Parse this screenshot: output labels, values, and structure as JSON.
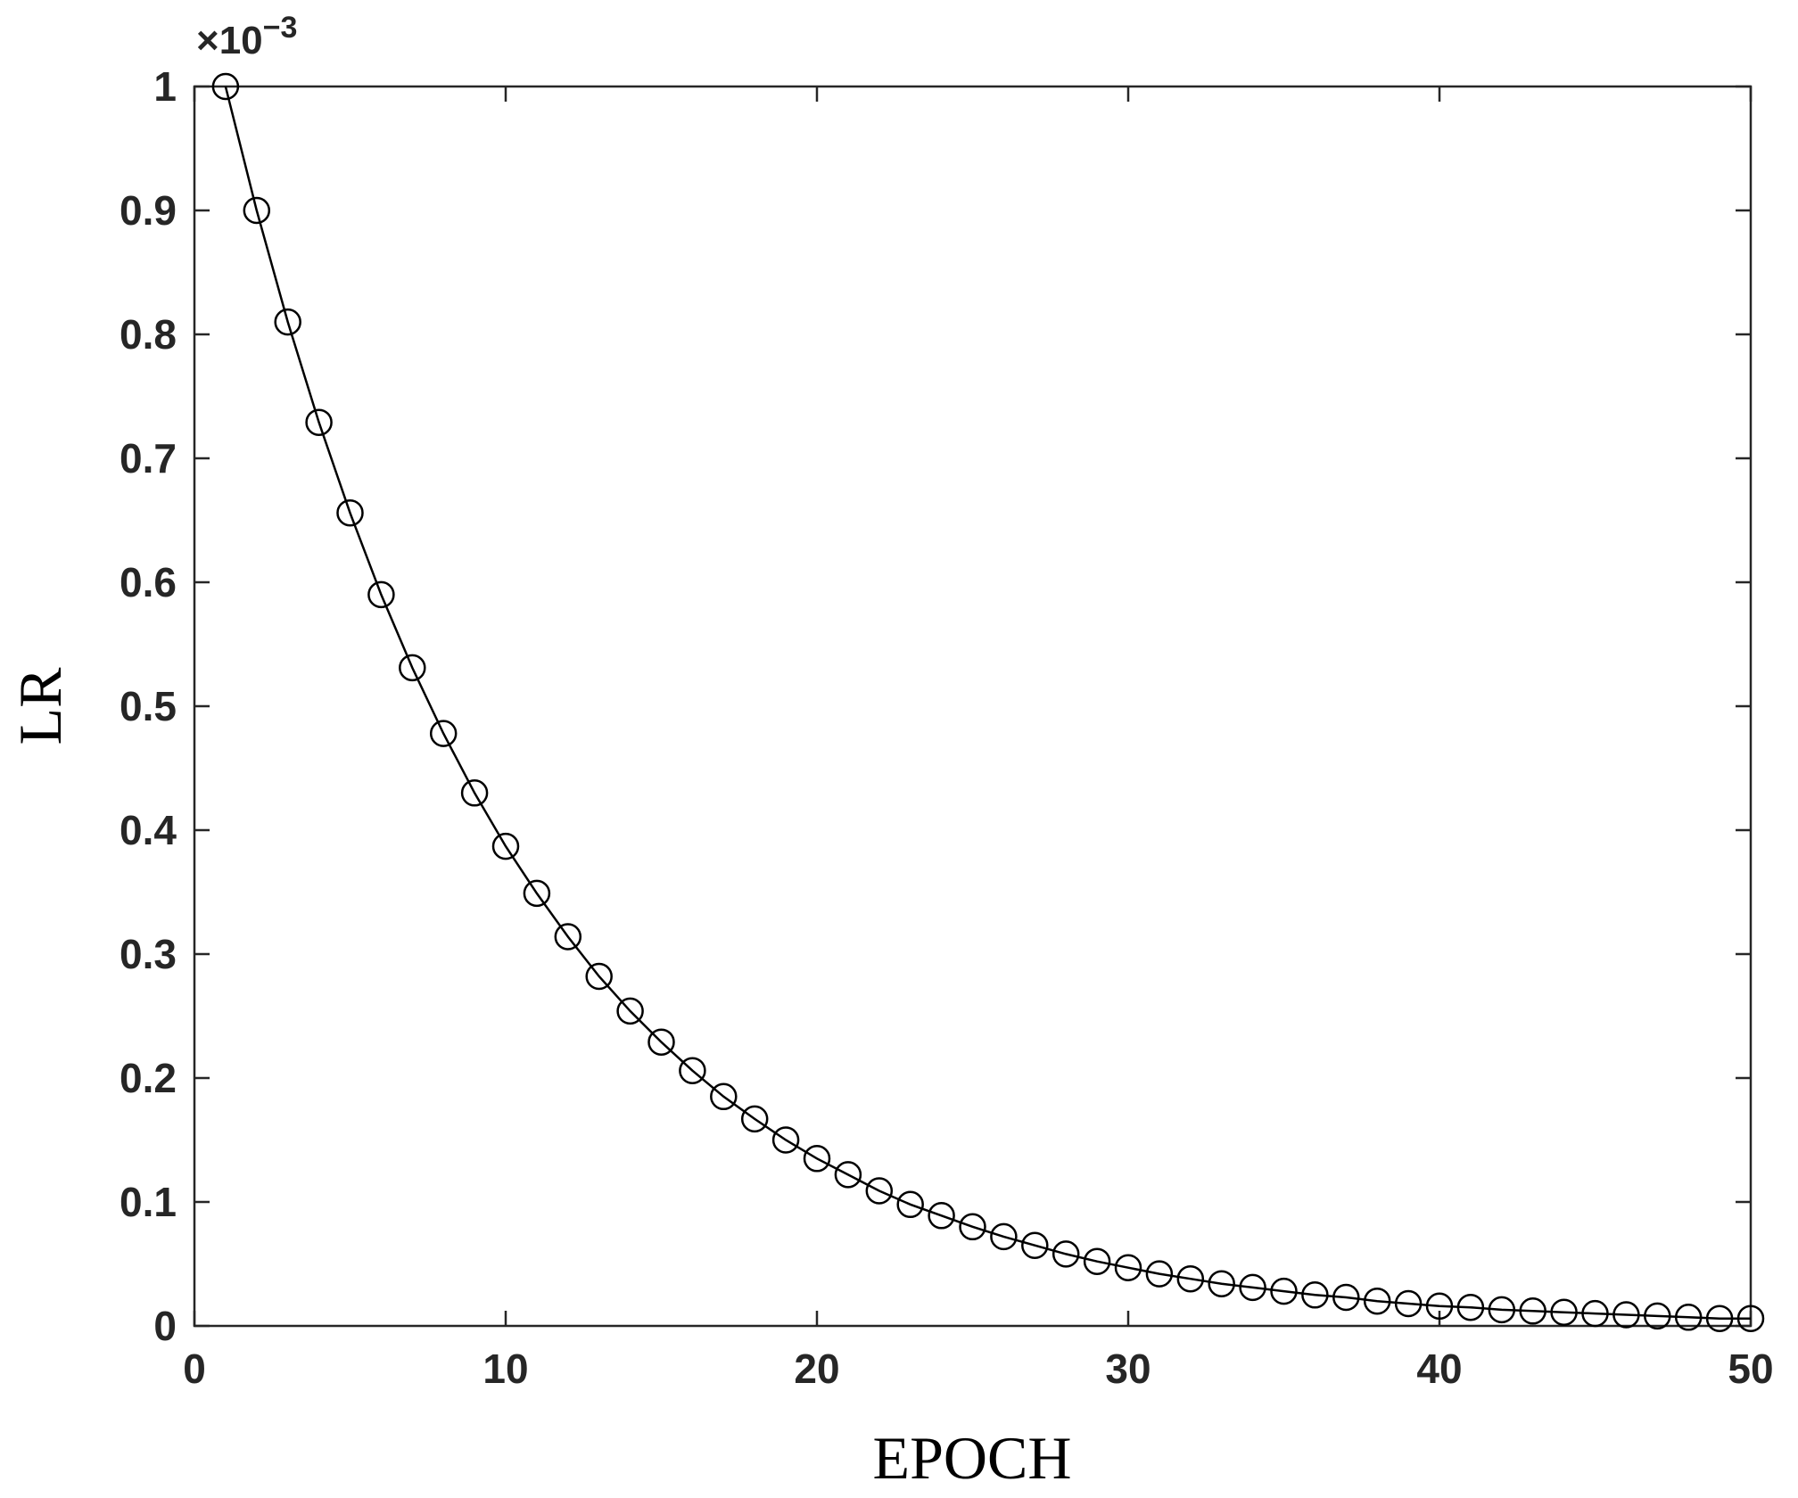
{
  "chart_data": {
    "type": "line",
    "xlabel": "EPOCH",
    "ylabel": "LR",
    "y_exponent": {
      "times": "×10",
      "power": "−3"
    },
    "xlim": [
      0,
      50
    ],
    "ylim": [
      0,
      1
    ],
    "xticks": [
      0,
      10,
      20,
      30,
      40,
      50
    ],
    "yticks": [
      0,
      0.1,
      0.2,
      0.3,
      0.4,
      0.5,
      0.6,
      0.7,
      0.8,
      0.9,
      1
    ],
    "xtick_labels": [
      "0",
      "10",
      "20",
      "30",
      "40",
      "50"
    ],
    "ytick_labels": [
      "0",
      "0.1",
      "0.2",
      "0.3",
      "0.4",
      "0.5",
      "0.6",
      "0.7",
      "0.8",
      "0.9",
      "1"
    ],
    "grid": false,
    "marker": "circle",
    "line_color": "#000000",
    "series": [
      {
        "x": [
          1,
          2,
          3,
          4,
          5,
          6,
          7,
          8,
          9,
          10,
          11,
          12,
          13,
          14,
          15,
          16,
          17,
          18,
          19,
          20,
          21,
          22,
          23,
          24,
          25,
          26,
          27,
          28,
          29,
          30,
          31,
          32,
          33,
          34,
          35,
          36,
          37,
          38,
          39,
          40,
          41,
          42,
          43,
          44,
          45,
          46,
          47,
          48,
          49,
          50
        ],
        "values": [
          1.0,
          0.9,
          0.81,
          0.729,
          0.656,
          0.59,
          0.531,
          0.478,
          0.43,
          0.387,
          0.349,
          0.314,
          0.282,
          0.254,
          0.229,
          0.206,
          0.185,
          0.167,
          0.15,
          0.135,
          0.122,
          0.109,
          0.098,
          0.089,
          0.08,
          0.072,
          0.065,
          0.058,
          0.052,
          0.047,
          0.042,
          0.038,
          0.034,
          0.031,
          0.028,
          0.025,
          0.023,
          0.02,
          0.018,
          0.016,
          0.015,
          0.013,
          0.012,
          0.011,
          0.01,
          0.009,
          0.008,
          0.007,
          0.006,
          0.006
        ]
      }
    ]
  }
}
